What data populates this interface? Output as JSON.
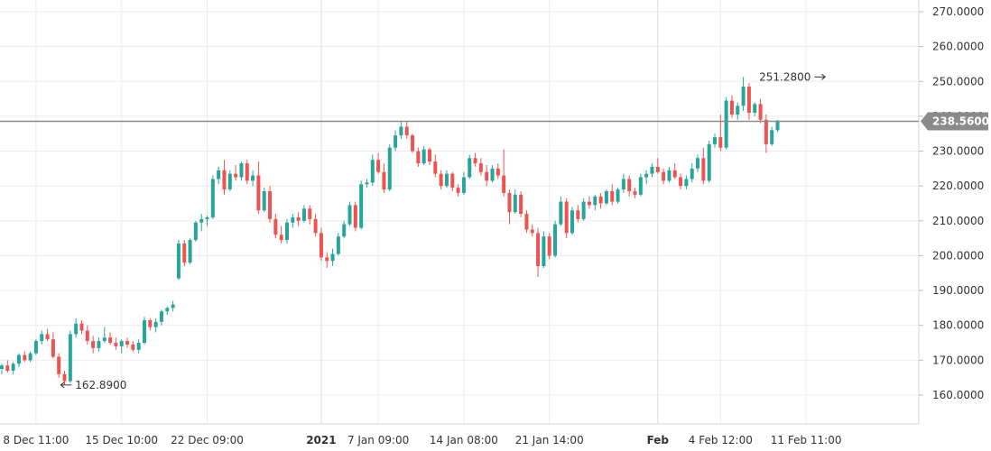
{
  "chart_data": {
    "type": "candlestick",
    "title": "",
    "xlabel": "",
    "ylabel": "",
    "ylim": [
      155,
      275
    ],
    "grid": true,
    "y_axis_side": "right",
    "y_ticks": [
      160,
      170,
      180,
      190,
      200,
      210,
      220,
      230,
      240,
      250,
      260,
      270
    ],
    "y_tick_labels": [
      "160.0000",
      "170.0000",
      "180.0000",
      "190.0000",
      "200.0000",
      "210.0000",
      "220.0000",
      "230.0000",
      "240.0000",
      "250.0000",
      "260.0000",
      "270.0000"
    ],
    "x_ticks": [
      {
        "label": "8 Dec 11:00",
        "index": 6,
        "bold": false
      },
      {
        "label": "15 Dec 10:00",
        "index": 21,
        "bold": false
      },
      {
        "label": "22 Dec 09:00",
        "index": 36,
        "bold": false
      },
      {
        "label": "2021",
        "index": 56,
        "bold": true
      },
      {
        "label": "7 Jan 09:00",
        "index": 66,
        "bold": false
      },
      {
        "label": "14 Jan 08:00",
        "index": 81,
        "bold": false
      },
      {
        "label": "21 Jan 14:00",
        "index": 96,
        "bold": false
      },
      {
        "label": "Feb",
        "index": 115,
        "bold": true
      },
      {
        "label": "4 Feb 12:00",
        "index": 126,
        "bold": false
      },
      {
        "label": "11 Feb 11:00",
        "index": 141,
        "bold": false
      }
    ],
    "colors": {
      "up": "#26a69a",
      "down": "#ef5350",
      "grid": "#ececec",
      "price_line": "#8a8a8a",
      "price_label_bg": "#8a8a8a"
    },
    "current_price": 238.56,
    "current_price_label": "238.5600",
    "annotations": [
      {
        "label": "162.8900",
        "value": 162.89,
        "index": 10,
        "arrow": "left"
      },
      {
        "label": "251.2800",
        "value": 251.28,
        "index": 145,
        "arrow": "right"
      }
    ],
    "candles": [
      [
        167.5,
        169.0,
        166.0,
        168.5
      ],
      [
        168.5,
        170.0,
        166.5,
        167.0
      ],
      [
        167.0,
        169.5,
        166.0,
        169.0
      ],
      [
        169.0,
        172.0,
        168.0,
        171.5
      ],
      [
        171.5,
        172.5,
        169.5,
        170.0
      ],
      [
        170.0,
        172.5,
        169.5,
        172.0
      ],
      [
        172.0,
        176.0,
        171.5,
        175.5
      ],
      [
        175.5,
        178.5,
        174.5,
        177.5
      ],
      [
        177.5,
        179.0,
        175.5,
        176.0
      ],
      [
        176.0,
        178.0,
        170.5,
        171.0
      ],
      [
        171.0,
        172.0,
        165.0,
        166.0
      ],
      [
        166.0,
        167.0,
        162.89,
        164.0
      ],
      [
        164.0,
        178.5,
        163.5,
        177.5
      ],
      [
        177.5,
        182.0,
        176.5,
        180.5
      ],
      [
        180.5,
        181.5,
        177.5,
        178.5
      ],
      [
        178.5,
        180.0,
        174.5,
        175.5
      ],
      [
        175.5,
        177.0,
        172.0,
        173.5
      ],
      [
        173.5,
        176.5,
        172.5,
        175.5
      ],
      [
        175.5,
        179.5,
        175.0,
        176.5
      ],
      [
        176.5,
        178.0,
        174.5,
        175.0
      ],
      [
        175.0,
        176.5,
        173.0,
        174.0
      ],
      [
        174.0,
        176.0,
        172.0,
        175.5
      ],
      [
        175.5,
        176.5,
        173.5,
        174.5
      ],
      [
        174.5,
        175.5,
        172.5,
        173.0
      ],
      [
        173.0,
        176.0,
        172.0,
        175.0
      ],
      [
        175.0,
        182.5,
        174.5,
        181.5
      ],
      [
        181.5,
        182.0,
        178.5,
        179.5
      ],
      [
        179.5,
        182.0,
        178.0,
        181.0
      ],
      [
        181.0,
        184.5,
        180.0,
        184.0
      ],
      [
        184.0,
        185.5,
        183.0,
        185.0
      ],
      [
        185.0,
        187.0,
        184.0,
        186.0
      ],
      [
        193.5,
        204.5,
        193.0,
        203.5
      ],
      [
        203.5,
        204.5,
        197.0,
        198.0
      ],
      [
        198.0,
        205.0,
        197.5,
        204.5
      ],
      [
        204.5,
        210.0,
        204.0,
        209.5
      ],
      [
        209.5,
        212.0,
        207.0,
        210.5
      ],
      [
        210.5,
        211.5,
        208.5,
        211.0
      ],
      [
        211.0,
        223.0,
        210.5,
        222.0
      ],
      [
        222.0,
        225.5,
        220.5,
        224.5
      ],
      [
        224.5,
        227.5,
        217.5,
        219.0
      ],
      [
        219.0,
        224.5,
        218.5,
        223.5
      ],
      [
        223.5,
        226.0,
        221.5,
        222.5
      ],
      [
        222.5,
        227.0,
        221.5,
        226.5
      ],
      [
        226.5,
        227.5,
        220.5,
        221.5
      ],
      [
        221.5,
        224.5,
        220.0,
        223.0
      ],
      [
        223.0,
        227.0,
        212.0,
        213.0
      ],
      [
        213.0,
        219.5,
        212.5,
        218.5
      ],
      [
        218.5,
        220.0,
        209.5,
        210.5
      ],
      [
        210.5,
        212.0,
        205.0,
        206.0
      ],
      [
        206.0,
        208.5,
        203.5,
        204.5
      ],
      [
        204.5,
        210.5,
        203.5,
        209.5
      ],
      [
        209.5,
        212.0,
        208.0,
        211.0
      ],
      [
        211.0,
        212.5,
        208.5,
        210.0
      ],
      [
        210.0,
        214.5,
        209.5,
        213.5
      ],
      [
        213.5,
        214.5,
        209.0,
        210.5
      ],
      [
        210.5,
        212.0,
        205.5,
        206.5
      ],
      [
        206.5,
        208.0,
        198.5,
        199.5
      ],
      [
        199.5,
        201.0,
        196.5,
        198.5
      ],
      [
        198.5,
        202.0,
        197.0,
        200.5
      ],
      [
        200.5,
        206.5,
        200.0,
        205.5
      ],
      [
        205.5,
        210.0,
        205.0,
        209.0
      ],
      [
        209.0,
        215.5,
        208.5,
        214.5
      ],
      [
        214.5,
        215.5,
        207.0,
        208.0
      ],
      [
        208.0,
        221.5,
        207.5,
        220.5
      ],
      [
        220.5,
        222.0,
        219.5,
        221.0
      ],
      [
        221.0,
        229.0,
        220.0,
        227.5
      ],
      [
        227.5,
        229.5,
        223.5,
        224.0
      ],
      [
        224.0,
        226.5,
        218.0,
        219.0
      ],
      [
        219.0,
        232.0,
        218.5,
        231.0
      ],
      [
        231.0,
        236.0,
        230.0,
        234.5
      ],
      [
        234.5,
        238.5,
        233.5,
        237.0
      ],
      [
        237.0,
        238.5,
        233.5,
        234.5
      ],
      [
        234.5,
        235.0,
        229.5,
        230.0
      ],
      [
        230.0,
        231.0,
        225.5,
        226.5
      ],
      [
        226.5,
        231.5,
        226.0,
        230.5
      ],
      [
        230.5,
        231.0,
        226.0,
        227.0
      ],
      [
        227.0,
        229.0,
        222.5,
        223.5
      ],
      [
        223.5,
        224.5,
        219.0,
        220.0
      ],
      [
        220.0,
        224.5,
        219.5,
        223.5
      ],
      [
        223.5,
        224.0,
        218.5,
        219.5
      ],
      [
        219.5,
        220.5,
        217.0,
        218.0
      ],
      [
        218.0,
        224.0,
        217.5,
        222.5
      ],
      [
        222.5,
        229.0,
        222.0,
        228.0
      ],
      [
        228.0,
        229.5,
        225.5,
        226.5
      ],
      [
        226.5,
        228.0,
        223.0,
        224.0
      ],
      [
        224.0,
        226.0,
        220.0,
        221.5
      ],
      [
        221.5,
        226.0,
        221.0,
        225.0
      ],
      [
        225.0,
        226.5,
        222.0,
        223.0
      ],
      [
        223.0,
        230.5,
        217.0,
        218.0
      ],
      [
        218.0,
        219.0,
        209.0,
        212.5
      ],
      [
        212.5,
        219.0,
        212.0,
        217.5
      ],
      [
        217.5,
        218.5,
        211.0,
        212.0
      ],
      [
        212.0,
        213.0,
        206.5,
        207.5
      ],
      [
        207.5,
        209.0,
        205.5,
        206.5
      ],
      [
        206.5,
        208.0,
        193.9,
        197.0
      ],
      [
        197.0,
        207.0,
        196.5,
        205.5
      ],
      [
        205.5,
        206.5,
        199.0,
        200.0
      ],
      [
        200.0,
        210.0,
        199.5,
        209.0
      ],
      [
        209.0,
        217.0,
        208.5,
        215.5
      ],
      [
        215.5,
        216.5,
        205.0,
        206.5
      ],
      [
        206.5,
        214.0,
        206.0,
        213.0
      ],
      [
        213.0,
        214.5,
        209.5,
        210.5
      ],
      [
        210.5,
        216.5,
        210.0,
        215.5
      ],
      [
        215.5,
        217.0,
        213.5,
        214.5
      ],
      [
        214.5,
        217.5,
        213.0,
        217.0
      ],
      [
        217.0,
        218.0,
        213.5,
        215.0
      ],
      [
        215.0,
        219.0,
        214.5,
        218.5
      ],
      [
        218.5,
        220.5,
        214.5,
        215.5
      ],
      [
        215.5,
        219.5,
        215.0,
        219.0
      ],
      [
        219.0,
        223.5,
        218.0,
        222.0
      ],
      [
        222.0,
        223.0,
        217.0,
        218.5
      ],
      [
        218.5,
        219.5,
        216.5,
        217.5
      ],
      [
        217.5,
        223.5,
        217.0,
        222.5
      ],
      [
        222.5,
        224.5,
        220.5,
        223.5
      ],
      [
        223.5,
        226.5,
        222.5,
        225.5
      ],
      [
        225.5,
        228.0,
        223.5,
        224.0
      ],
      [
        224.0,
        225.0,
        220.5,
        221.5
      ],
      [
        221.5,
        225.5,
        221.0,
        224.5
      ],
      [
        224.5,
        226.5,
        222.0,
        222.5
      ],
      [
        222.5,
        223.5,
        219.0,
        220.0
      ],
      [
        220.0,
        223.0,
        219.0,
        222.0
      ],
      [
        222.0,
        226.5,
        221.0,
        225.0
      ],
      [
        225.0,
        229.0,
        224.0,
        228.0
      ],
      [
        228.0,
        231.0,
        220.5,
        221.5
      ],
      [
        221.5,
        233.0,
        221.0,
        232.0
      ],
      [
        232.0,
        235.0,
        231.0,
        234.0
      ],
      [
        234.0,
        240.5,
        230.0,
        231.0
      ],
      [
        231.0,
        245.5,
        230.5,
        244.5
      ],
      [
        244.5,
        246.0,
        239.5,
        240.5
      ],
      [
        240.5,
        244.0,
        239.0,
        243.0
      ],
      [
        243.0,
        251.28,
        241.5,
        248.5
      ],
      [
        248.5,
        249.5,
        239.0,
        241.0
      ],
      [
        241.0,
        244.0,
        240.0,
        243.5
      ],
      [
        243.5,
        245.0,
        238.0,
        239.0
      ],
      [
        239.0,
        240.5,
        229.5,
        232.0
      ],
      [
        232.0,
        237.0,
        231.5,
        236.0
      ],
      [
        236.0,
        239.0,
        235.5,
        238.56
      ]
    ]
  }
}
